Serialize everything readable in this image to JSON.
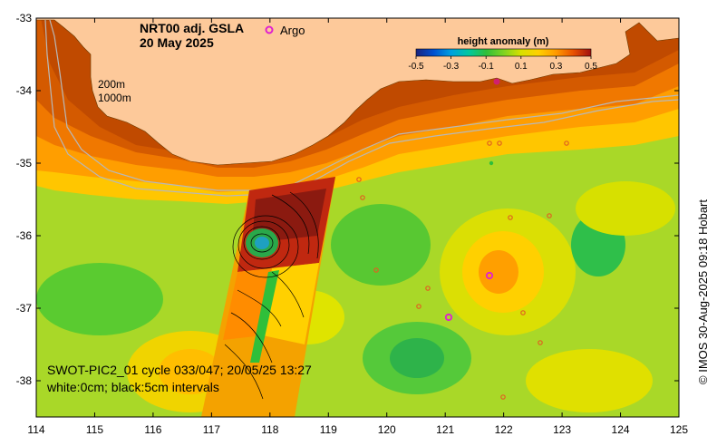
{
  "map": {
    "title_line1": "NRT00 adj. GSLA",
    "title_line2": "20 May 2025",
    "argo_label": "Argo",
    "depth_label_200": "200m",
    "depth_label_1000": "1000m",
    "swot_line1": "SWOT-PIC2_01 cycle 033/047; 20/05/25 13:27",
    "swot_line2": "white:0cm; black:5cm intervals",
    "credit": "© IMOS 30-Aug-2025 09:18 Hobart"
  },
  "colorbar": {
    "title": "height anomaly (m)",
    "ticks": [
      "-0.5",
      "-0.3",
      "-0.1",
      "0.1",
      "0.3",
      "0.5"
    ],
    "min": -0.5,
    "max": 0.5,
    "colors": [
      "#1a237e",
      "#0050d0",
      "#00a0e0",
      "#00c8a0",
      "#2fbf3a",
      "#7ed321",
      "#d8e000",
      "#ffd000",
      "#ff9a00",
      "#e85000",
      "#a01010"
    ]
  },
  "x_axis": {
    "ticks": [
      "114",
      "115",
      "116",
      "117",
      "118",
      "119",
      "120",
      "121",
      "122",
      "123",
      "124",
      "125"
    ],
    "min": 114,
    "max": 125
  },
  "y_axis": {
    "ticks": [
      "-33",
      "-34",
      "-35",
      "-36",
      "-37",
      "-38"
    ],
    "top": -33,
    "bottom": -38.5
  },
  "colors": {
    "land": "#fdc99a",
    "argo": "#e020d0",
    "swot_high": "#8b1a10",
    "swot_low": "#2fbf3a"
  }
}
